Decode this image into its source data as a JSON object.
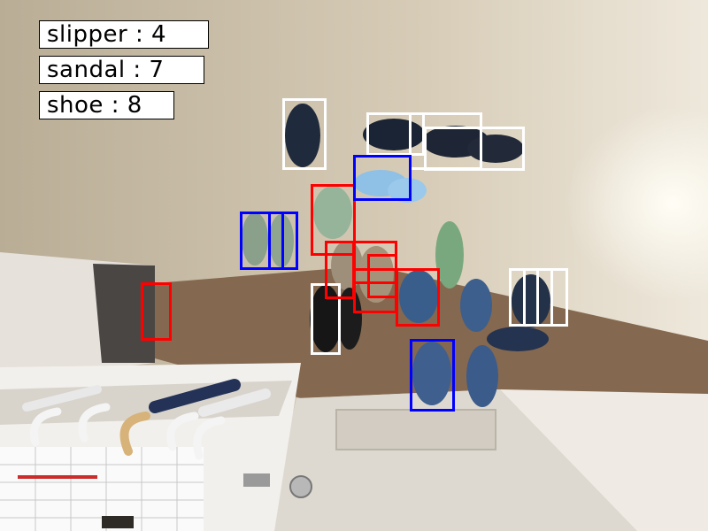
{
  "labels": {
    "slipper": "slipper : 4",
    "sandal": "sandal : 7",
    "shoe": "shoe : 8"
  },
  "colors": {
    "shoe": "#ffffff",
    "sandal": "#ff0000",
    "slipper": "#0000ff",
    "label_bg": "#ffffff",
    "label_text": "#000000"
  }
}
